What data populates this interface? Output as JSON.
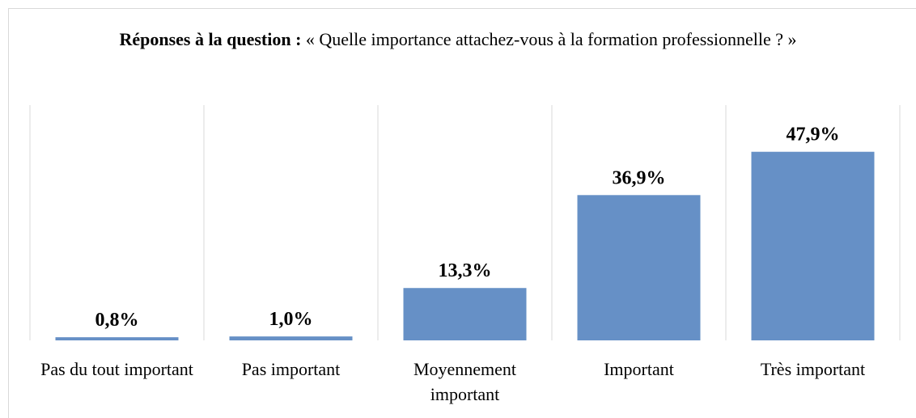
{
  "chart_data": {
    "type": "bar",
    "title": "Réponses à la question :",
    "subtitle": "« Quelle importance attachez-vous à la formation professionnelle ? »",
    "categories": [
      "Pas du tout important",
      "Pas important",
      "Moyennement important",
      "Important",
      "Très important"
    ],
    "values": [
      0.8,
      1.0,
      13.3,
      36.9,
      47.9
    ],
    "value_labels": [
      "0,8%",
      "1,0%",
      "13,3%",
      "36,9%",
      "47,9%"
    ],
    "color": "#6690c6",
    "ylim": [
      0,
      50
    ],
    "grid": false
  }
}
